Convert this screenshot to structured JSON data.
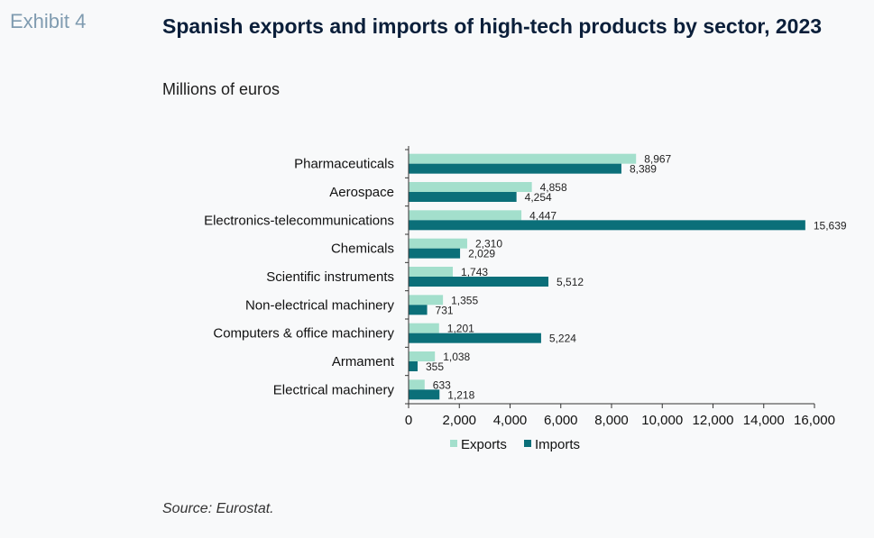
{
  "header": {
    "exhibit": "Exhibit 4",
    "title": "Spanish exports and imports of high-tech products by sector, 2023",
    "subtitle": "Millions of euros"
  },
  "footer": {
    "source": "Source: Eurostat."
  },
  "colors": {
    "exports": "#a3dfcc",
    "imports": "#0b6f79"
  },
  "chart_data": {
    "type": "bar",
    "orientation": "horizontal",
    "categories": [
      "Pharmaceuticals",
      "Aerospace",
      "Electronics-telecommunications",
      "Chemicals",
      "Scientific instruments",
      "Non-electrical machinery",
      "Computers & office machinery",
      "Armament",
      "Electrical machinery"
    ],
    "series": [
      {
        "name": "Exports",
        "values": [
          8967,
          4858,
          4447,
          2310,
          1743,
          1355,
          1201,
          1038,
          633
        ],
        "labels": [
          "8,967",
          "4,858",
          "4,447",
          "2,310",
          "1,743",
          "1,355",
          "1,201",
          "1,038",
          "633"
        ]
      },
      {
        "name": "Imports",
        "values": [
          8389,
          4254,
          15639,
          2029,
          5512,
          731,
          5224,
          355,
          1218
        ],
        "labels": [
          "8,389",
          "4,254",
          "15,639",
          "2,029",
          "5,512",
          "731",
          "5,224",
          "355",
          "1,218"
        ]
      }
    ],
    "xlim": [
      0,
      16000
    ],
    "xticks": [
      0,
      2000,
      4000,
      6000,
      8000,
      10000,
      12000,
      14000,
      16000
    ],
    "xtick_labels": [
      "0",
      "2,000",
      "4,000",
      "6,000",
      "8,000",
      "10,000",
      "12,000",
      "14,000",
      "16,000"
    ],
    "grid": false,
    "legend_position": "bottom"
  }
}
